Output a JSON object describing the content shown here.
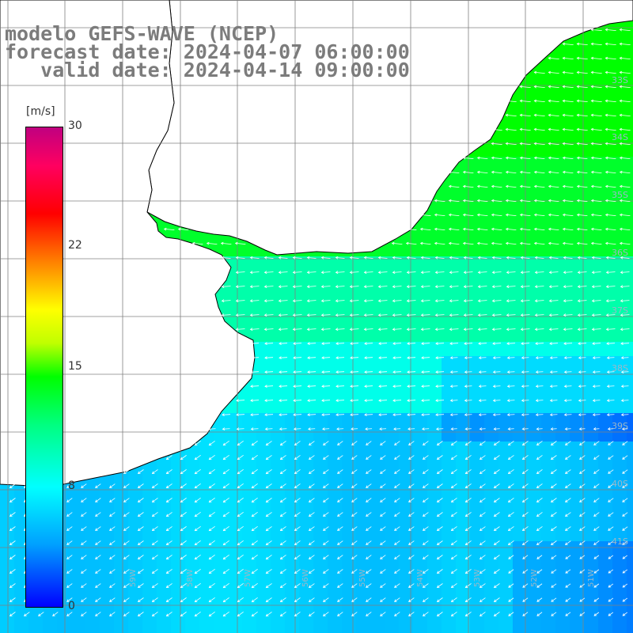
{
  "title": {
    "line1": "modelo GEFS-WAVE (NCEP)",
    "line2": "forecast date: 2024-04-07 06:00:00",
    "line3": "   valid date: 2024-04-14 09:00:00"
  },
  "colorbar": {
    "unit": "[m/s]",
    "ticks": [
      {
        "value": 30,
        "label": "30"
      },
      {
        "value": 22,
        "label": "22"
      },
      {
        "value": 15,
        "label": "15"
      },
      {
        "value": 8,
        "label": "8"
      },
      {
        "value": 0,
        "label": "0"
      }
    ],
    "min": 0,
    "max": 30
  },
  "latitude_labels": [
    "33S",
    "34S",
    "35S",
    "36S",
    "37S",
    "38S",
    "39S",
    "40S",
    "41S"
  ],
  "longitude_labels": [
    "59W",
    "58W",
    "57W",
    "56W",
    "55W",
    "54W",
    "53W",
    "52W",
    "51W"
  ],
  "colors": {
    "land": "#ffffff",
    "coast": "#000000",
    "grid": "#808080",
    "arrows": "#ffffff",
    "title": "#7c7c7c"
  }
}
